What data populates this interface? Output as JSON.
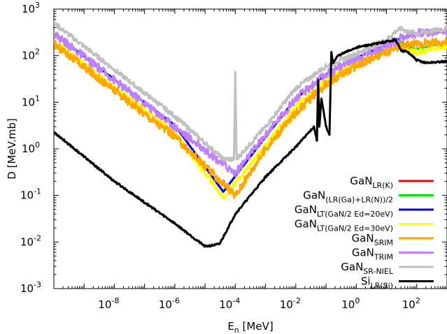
{
  "chart_data": {
    "type": "line",
    "xlabel": {
      "base": "E",
      "sub": "n",
      "rest": " [MeV]"
    },
    "ylabel": "D [MeV.mb]",
    "xscale": "log",
    "yscale": "log",
    "xlim": [
      1e-10,
      1000
    ],
    "ylim": [
      0.001,
      1000
    ],
    "grid": false,
    "legend_position": "bottom-right",
    "x_ticks": [
      {
        "mant": "10",
        "exp": "-8",
        "value": 1e-08
      },
      {
        "mant": "10",
        "exp": "-6",
        "value": 1e-06
      },
      {
        "mant": "10",
        "exp": "-4",
        "value": 0.0001
      },
      {
        "mant": "10",
        "exp": "-2",
        "value": 0.01
      },
      {
        "mant": "10",
        "exp": "0",
        "value": 1
      },
      {
        "mant": "10",
        "exp": "2",
        "value": 100
      }
    ],
    "y_ticks": [
      {
        "mant": "10",
        "exp": "-3",
        "value": 0.001
      },
      {
        "mant": "10",
        "exp": "-2",
        "value": 0.01
      },
      {
        "mant": "10",
        "exp": "-1",
        "value": 0.1
      },
      {
        "mant": "10",
        "exp": "0",
        "value": 1
      },
      {
        "mant": "10",
        "exp": "1",
        "value": 10
      },
      {
        "mant": "10",
        "exp": "2",
        "value": 100
      },
      {
        "mant": "10",
        "exp": "3",
        "value": 1000
      }
    ],
    "series": [
      {
        "name": "GaN",
        "sub": "LR(K)",
        "color": "#ff0000",
        "noise": 0.0,
        "x": [
          1e-10,
          1e-06,
          4e-05,
          0.001,
          0.01,
          0.1,
          1,
          10,
          20,
          30,
          50,
          100,
          1000
        ],
        "y": [
          300,
          3.2,
          0.12,
          1.8,
          12,
          40,
          90,
          170,
          210,
          240,
          260,
          300,
          330
        ]
      },
      {
        "name": "GaN",
        "sub": "(LR(Ga)+LR(N))/2",
        "color": "#00e000",
        "noise": 0.0,
        "x": [
          1e-10,
          1e-06,
          4e-05,
          0.001,
          0.01,
          0.1,
          1,
          10,
          20,
          30,
          50,
          100,
          1000
        ],
        "y": [
          300,
          3.2,
          0.12,
          1.8,
          12,
          40,
          90,
          170,
          215,
          200,
          160,
          140,
          190
        ]
      },
      {
        "name": "GaN",
        "sub": "LT(GaN/2 Ed=20eV)",
        "color": "#0000e0",
        "noise": 0.0,
        "x": [
          1e-10,
          1e-06,
          4e-05,
          0.001,
          0.01,
          0.1,
          1,
          10,
          20,
          30,
          50,
          100,
          1000
        ],
        "y": [
          300,
          3.2,
          0.12,
          1.8,
          12,
          40,
          90,
          170,
          210,
          240,
          260,
          300,
          330
        ]
      },
      {
        "name": "GaN",
        "sub": "LT(GaN/2 Ed=30eV)",
        "color": "#ffff00",
        "noise": 0.06,
        "x": [
          1e-10,
          1e-06,
          4e-05,
          0.001,
          0.01,
          0.1,
          1,
          10,
          20,
          30,
          50,
          100,
          1000
        ],
        "y": [
          200,
          2.2,
          0.09,
          1.2,
          8,
          30,
          70,
          130,
          160,
          150,
          140,
          120,
          160
        ]
      },
      {
        "name": "GaN",
        "sub": "SRIM",
        "color": "#ffa500",
        "noise": 0.09,
        "x": [
          1e-10,
          1e-06,
          0.0001,
          0.001,
          0.01,
          0.1,
          1,
          10,
          20,
          30,
          50,
          100,
          1000
        ],
        "y": [
          180,
          1.8,
          0.1,
          1.0,
          6,
          25,
          60,
          120,
          150,
          160,
          170,
          180,
          200
        ]
      },
      {
        "name": "GaN",
        "sub": "TRIM",
        "color": "#c080ff",
        "noise": 0.09,
        "x": [
          1e-10,
          1e-06,
          0.0001,
          0.001,
          0.01,
          0.1,
          1,
          10,
          20,
          30,
          50,
          100,
          1000
        ],
        "y": [
          300,
          3.0,
          0.3,
          2.0,
          12,
          40,
          90,
          170,
          210,
          240,
          280,
          300,
          350
        ]
      },
      {
        "name": "GaN",
        "sub": "SR-NIEL",
        "color": "#c0c0c0",
        "noise": 0.05,
        "x": [
          1e-10,
          1e-06,
          4e-05,
          9e-05,
          0.0001,
          0.00011,
          0.001,
          0.01,
          0.1,
          1,
          10,
          20,
          30,
          50,
          100,
          1000
        ],
        "y": [
          500,
          5,
          0.6,
          0.6,
          45,
          0.6,
          3,
          20,
          60,
          110,
          220,
          330,
          380,
          330,
          300,
          380
        ]
      },
      {
        "name": "Si",
        "sub": "LR(Si)",
        "color": "#000000",
        "noise": 0.02,
        "x": [
          1e-10,
          1e-08,
          1e-06,
          1e-05,
          3e-05,
          0.0001,
          0.001,
          0.01,
          0.04,
          0.05,
          0.055,
          0.06,
          0.07,
          0.1,
          0.13,
          0.15,
          0.17,
          0.25,
          1,
          10,
          20,
          30,
          50,
          100,
          200,
          1000
        ],
        "y": [
          2.3,
          0.2,
          0.025,
          0.008,
          0.009,
          0.04,
          0.25,
          1.1,
          3.0,
          1.5,
          30,
          3,
          12,
          3,
          2.0,
          120,
          70,
          100,
          150,
          200,
          220,
          130,
          120,
          80,
          70,
          75
        ]
      }
    ]
  }
}
